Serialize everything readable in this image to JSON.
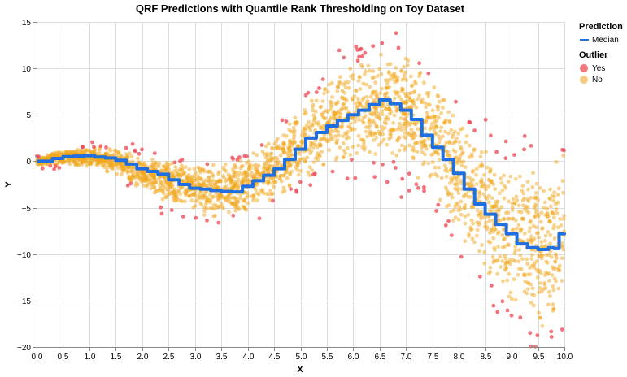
{
  "chart_data": {
    "type": "scatter",
    "title": "QRF Predictions with Quantile Rank Thresholding on Toy Dataset",
    "xlabel": "X",
    "ylabel": "Y",
    "xlim": [
      0,
      10
    ],
    "ylim": [
      -20,
      15
    ],
    "x_ticks": [
      "0.0",
      "0.5",
      "1.0",
      "1.5",
      "2.0",
      "2.5",
      "3.0",
      "3.5",
      "4.0",
      "4.5",
      "5.0",
      "5.5",
      "6.0",
      "6.5",
      "7.0",
      "7.5",
      "8.0",
      "8.5",
      "9.0",
      "9.5",
      "10.0"
    ],
    "y_ticks": [
      "15",
      "10",
      "5",
      "0",
      "−5",
      "−10",
      "−15",
      "−20"
    ],
    "grid": true,
    "legend_position": "right",
    "legend": {
      "prediction_title": "Prediction",
      "prediction_items": [
        {
          "label": "Median",
          "color": "#1f6fe0"
        }
      ],
      "outlier_title": "Outlier",
      "outlier_items": [
        {
          "label": "Yes",
          "color": "#f0606a"
        },
        {
          "label": "No",
          "color": "#f5c06a"
        }
      ]
    },
    "colors": {
      "median": "#1f6fe0",
      "outlier_yes": "#ef4450",
      "outlier_no": "#f2a81e"
    },
    "series": [
      {
        "name": "Median",
        "type": "step-line",
        "x": [
          0.0,
          0.3,
          0.5,
          0.7,
          0.9,
          1.1,
          1.3,
          1.5,
          1.7,
          1.9,
          2.1,
          2.3,
          2.5,
          2.7,
          2.9,
          3.1,
          3.3,
          3.5,
          3.7,
          3.9,
          4.1,
          4.3,
          4.5,
          4.7,
          4.9,
          5.1,
          5.3,
          5.5,
          5.7,
          5.9,
          6.1,
          6.3,
          6.5,
          6.7,
          6.9,
          7.1,
          7.3,
          7.5,
          7.7,
          7.9,
          8.1,
          8.3,
          8.5,
          8.7,
          8.9,
          9.1,
          9.3,
          9.5,
          9.7,
          9.8,
          9.9,
          10.0
        ],
        "y": [
          0.0,
          0.3,
          0.5,
          0.55,
          0.6,
          0.45,
          0.35,
          0.1,
          -0.3,
          -0.8,
          -1.1,
          -1.4,
          -2.0,
          -2.5,
          -2.9,
          -3.0,
          -3.15,
          -3.25,
          -3.3,
          -2.7,
          -2.1,
          -1.5,
          -0.8,
          0.2,
          1.3,
          2.5,
          3.1,
          3.8,
          4.4,
          5.0,
          5.5,
          6.1,
          6.6,
          6.2,
          5.5,
          4.5,
          2.8,
          1.5,
          0.2,
          -1.3,
          -3.0,
          -4.6,
          -5.7,
          -6.8,
          -7.8,
          -8.9,
          -9.3,
          -9.5,
          -9.3,
          -9.4,
          -7.8,
          -7.7
        ]
      }
    ],
    "scatter_model": {
      "description_free": true,
      "trend_x": [
        0,
        0.5,
        1,
        1.5,
        2,
        2.5,
        3,
        3.5,
        4,
        4.5,
        5,
        5.5,
        6,
        6.5,
        7,
        7.5,
        8,
        8.5,
        9,
        9.5,
        10
      ],
      "trend_y": [
        0,
        0.4,
        0.5,
        0.0,
        -1.2,
        -2.4,
        -3.0,
        -3.3,
        -2.4,
        -0.8,
        1.8,
        3.9,
        5.4,
        6.3,
        5.5,
        2.6,
        -1.5,
        -5.2,
        -8.2,
        -9.4,
        -8.5
      ],
      "spread_y": [
        0.2,
        0.4,
        0.5,
        0.7,
        0.9,
        1.1,
        1.3,
        1.4,
        1.4,
        1.6,
        1.9,
        2.2,
        2.5,
        2.7,
        2.9,
        3.0,
        3.2,
        3.5,
        3.8,
        4.2,
        4.6
      ],
      "n_points": 2800
    }
  }
}
